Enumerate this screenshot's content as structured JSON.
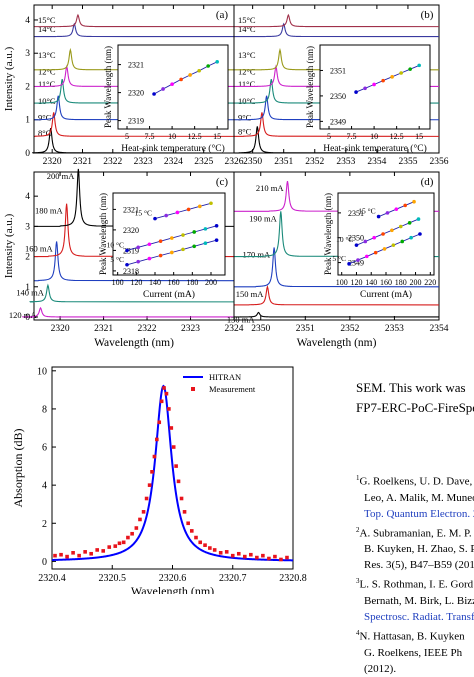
{
  "chart_data": [
    {
      "id": "a",
      "type": "line",
      "panel_label": "(a)",
      "xlabel": "",
      "ylabel": "Intensity (a.u.)",
      "xlim": [
        2319.4,
        2326
      ],
      "ylim": [
        0,
        4.45
      ],
      "xticks": [
        "2320",
        "2321",
        "2322",
        "2323",
        "2324",
        "2325",
        "2326"
      ],
      "xtick_values": [
        2320,
        2321,
        2322,
        2323,
        2324,
        2325,
        2326
      ],
      "yticks": [
        "0",
        "1",
        "2",
        "3",
        "4"
      ],
      "ytick_values": [
        0,
        1,
        2,
        3,
        4
      ],
      "series": [
        {
          "name": "8°C",
          "peak": 2319.95,
          "baseline": 0,
          "height": 0.75,
          "color": "#000000"
        },
        {
          "name": "9°C",
          "peak": 2320.05,
          "baseline": 0.5,
          "height": 0.72,
          "color": "#d61c1c"
        },
        {
          "name": "10°C",
          "peak": 2320.2,
          "baseline": 1.0,
          "height": 0.72,
          "color": "#1f3fbf"
        },
        {
          "name": "11°C",
          "peak": 2320.33,
          "baseline": 1.5,
          "height": 0.72,
          "color": "#1a8a7a"
        },
        {
          "name": "12°C",
          "peak": 2320.48,
          "baseline": 2.0,
          "height": 0.6,
          "color": "#cc22cc"
        },
        {
          "name": "13°C",
          "peak": 2320.6,
          "baseline": 2.5,
          "height": 0.6,
          "color": "#9a9a1a"
        },
        {
          "name": "14°C",
          "peak": 2320.73,
          "baseline": 3.5,
          "height": 0.38,
          "color": "#3a3aa0"
        },
        {
          "name": "15°C",
          "peak": 2320.85,
          "baseline": 3.8,
          "height": 0.35,
          "color": "#a0304a"
        }
      ],
      "inset": {
        "xlabel": "Heat-sink temperature (°C)",
        "ylabel": "Peak Wavelength (nm)",
        "xlim": [
          4,
          16.2
        ],
        "ylim": [
          2318.7,
          2321.7
        ],
        "xticks": [
          "5",
          "7.5",
          "10",
          "12.5",
          "15"
        ],
        "xtick_values": [
          5,
          7.5,
          10,
          12.5,
          15
        ],
        "yticks": [
          "2319",
          "2320",
          "2321"
        ],
        "ytick_values": [
          2319,
          2320,
          2321
        ],
        "x": [
          8,
          9,
          10,
          11,
          12,
          13,
          14,
          15
        ],
        "y": [
          2319.95,
          2320.13,
          2320.3,
          2320.47,
          2320.63,
          2320.78,
          2320.95,
          2321.1
        ]
      }
    },
    {
      "id": "b",
      "type": "line",
      "panel_label": "(b)",
      "xlabel": "",
      "ylabel": "",
      "xlim": [
        2349.4,
        2356
      ],
      "ylim": [
        0,
        4.45
      ],
      "xticks": [
        "2350",
        "2351",
        "2352",
        "2353",
        "2354",
        "2355",
        "2356"
      ],
      "xtick_values": [
        2350,
        2351,
        2352,
        2353,
        2354,
        2355,
        2356
      ],
      "yticks": [],
      "ytick_values": [],
      "series": [
        {
          "name": "8°C",
          "peak": 2350.15,
          "baseline": 0,
          "height": 0.8,
          "color": "#000000"
        },
        {
          "name": "9°C",
          "peak": 2350.3,
          "baseline": 0.5,
          "height": 0.72,
          "color": "#d61c1c"
        },
        {
          "name": "10°C",
          "peak": 2350.45,
          "baseline": 1.0,
          "height": 0.72,
          "color": "#1f3fbf"
        },
        {
          "name": "11°C",
          "peak": 2350.6,
          "baseline": 1.5,
          "height": 0.72,
          "color": "#1a8a7a"
        },
        {
          "name": "12°C",
          "peak": 2350.75,
          "baseline": 2.0,
          "height": 0.6,
          "color": "#cc22cc"
        },
        {
          "name": "13°C",
          "peak": 2350.88,
          "baseline": 2.5,
          "height": 0.6,
          "color": "#9a9a1a"
        },
        {
          "name": "14°C",
          "peak": 2351.0,
          "baseline": 3.5,
          "height": 0.38,
          "color": "#3a3aa0"
        },
        {
          "name": "15°C",
          "peak": 2351.15,
          "baseline": 3.8,
          "height": 0.35,
          "color": "#a0304a"
        }
      ],
      "inset": {
        "xlabel": "Heat-sink temperature (°C)",
        "ylabel": "Peak Wavelength (nm)",
        "xlim": [
          4,
          16.2
        ],
        "ylim": [
          2348.7,
          2352.0
        ],
        "xticks": [
          "5",
          "7.5",
          "10",
          "12.5",
          "15"
        ],
        "xtick_values": [
          5,
          7.5,
          10,
          12.5,
          15
        ],
        "yticks": [
          "2349",
          "2350",
          "2351"
        ],
        "ytick_values": [
          2349,
          2350,
          2351
        ],
        "x": [
          8,
          9,
          10,
          11,
          12,
          13,
          14,
          15
        ],
        "y": [
          2350.15,
          2350.3,
          2350.45,
          2350.6,
          2350.75,
          2350.9,
          2351.05,
          2351.2
        ]
      }
    },
    {
      "id": "c",
      "type": "line",
      "panel_label": "(c)",
      "xlabel": "Wavelength (nm)",
      "ylabel": "Intensity (a.u.)",
      "xlim": [
        2319.4,
        2324
      ],
      "ylim": [
        -0.1,
        4.8
      ],
      "xticks": [
        "2320",
        "2321",
        "2322",
        "2323",
        "2324"
      ],
      "xtick_values": [
        2320,
        2321,
        2322,
        2323,
        2324
      ],
      "yticks": [
        "0",
        "1",
        "2",
        "3",
        "4"
      ],
      "ytick_values": [
        0,
        1,
        2,
        3,
        4
      ],
      "series": [
        {
          "name": "120 mA",
          "peak": 2319.55,
          "baseline": 0,
          "height": 0.3,
          "color": "#cc22cc"
        },
        {
          "name": "140 mA",
          "peak": 2319.72,
          "baseline": 0.5,
          "height": 0.55,
          "color": "#1a8a7a"
        },
        {
          "name": "160 mA",
          "peak": 2319.92,
          "baseline": 1.2,
          "height": 1.3,
          "color": "#1f3fbf"
        },
        {
          "name": "180 mA",
          "peak": 2320.15,
          "baseline": 2.0,
          "height": 1.75,
          "color": "#d61c1c"
        },
        {
          "name": "200 mA",
          "peak": 2320.42,
          "baseline": 3.0,
          "height": 1.9,
          "color": "#000000"
        }
      ],
      "inset": {
        "xlabel": "Current (mA)",
        "ylabel": "Peak Wavelength (nm)",
        "xlim": [
          95,
          215
        ],
        "ylim": [
          2317.8,
          2321.8
        ],
        "xticks": [
          "100",
          "120",
          "140",
          "160",
          "180",
          "200"
        ],
        "xtick_values": [
          100,
          120,
          140,
          160,
          180,
          200
        ],
        "yticks": [
          "2318",
          "2319",
          "2320",
          "2321"
        ],
        "ytick_values": [
          2318,
          2319,
          2320,
          2321
        ],
        "series": [
          {
            "name": "5 °C",
            "x": [
              110,
              122,
              134,
              146,
              158,
              170,
              182,
              194,
              206
            ],
            "y": [
              2318.3,
              2318.45,
              2318.6,
              2318.75,
              2318.9,
              2319.05,
              2319.2,
              2319.35,
              2319.5
            ]
          },
          {
            "name": "10 °C",
            "x": [
              110,
              122,
              134,
              146,
              158,
              170,
              182,
              194,
              206
            ],
            "y": [
              2319.0,
              2319.15,
              2319.3,
              2319.45,
              2319.6,
              2319.75,
              2319.9,
              2320.05,
              2320.2
            ]
          },
          {
            "name": "15 °C",
            "x": [
              140,
              152,
              164,
              176,
              188,
              200
            ],
            "y": [
              2320.55,
              2320.7,
              2320.85,
              2321.0,
              2321.15,
              2321.3
            ]
          }
        ]
      }
    },
    {
      "id": "d",
      "type": "line",
      "panel_label": "(d)",
      "xlabel": "Wavelength (nm)",
      "ylabel": "",
      "xlim": [
        2349.4,
        2354
      ],
      "ylim": [
        -0.1,
        4.8
      ],
      "xticks": [
        "2350",
        "2351",
        "2352",
        "2353",
        "2354"
      ],
      "xtick_values": [
        2350,
        2351,
        2352,
        2353,
        2354
      ],
      "yticks": [],
      "ytick_values": [],
      "series": [
        {
          "name": "130 mA",
          "peak": 2349.95,
          "baseline": 0,
          "height": 0.15,
          "color": "#000000"
        },
        {
          "name": "150 mA",
          "peak": 2350.15,
          "baseline": 0.4,
          "height": 0.6,
          "color": "#d61c1c"
        },
        {
          "name": "170 mA",
          "peak": 2350.3,
          "baseline": 1.0,
          "height": 1.3,
          "color": "#1f3fbf"
        },
        {
          "name": "190 mA",
          "peak": 2350.45,
          "baseline": 2.0,
          "height": 1.5,
          "color": "#1a8a7a"
        },
        {
          "name": "210 mA",
          "peak": 2350.6,
          "baseline": 3.5,
          "height": 1.0,
          "color": "#cc22cc"
        }
      ],
      "inset": {
        "xlabel": "Current (mA)",
        "ylabel": "Peak Wavelength (nm)",
        "xlim": [
          95,
          225
        ],
        "ylim": [
          2348.5,
          2351.8
        ],
        "xticks": [
          "100",
          "120",
          "140",
          "160",
          "180",
          "200",
          "220"
        ],
        "xtick_values": [
          100,
          120,
          140,
          160,
          180,
          200,
          220
        ],
        "yticks": [
          "2349",
          "2350",
          "2351"
        ],
        "ytick_values": [
          2349,
          2350,
          2351
        ],
        "series": [
          {
            "name": "5 °C",
            "x": [
              110,
              122,
              134,
              146,
              158,
              170,
              182,
              194,
              206
            ],
            "y": [
              2348.95,
              2349.1,
              2349.25,
              2349.4,
              2349.55,
              2349.7,
              2349.85,
              2350.0,
              2350.15
            ]
          },
          {
            "name": "10 °C",
            "x": [
              120,
              132,
              144,
              156,
              168,
              180,
              192,
              204
            ],
            "y": [
              2349.7,
              2349.85,
              2350.0,
              2350.15,
              2350.3,
              2350.45,
              2350.6,
              2350.75
            ]
          },
          {
            "name": "15 °C",
            "x": [
              150,
              162,
              174,
              186,
              198
            ],
            "y": [
              2350.85,
              2351.0,
              2351.15,
              2351.3,
              2351.45
            ]
          }
        ]
      }
    },
    {
      "id": "e",
      "type": "scatter",
      "xlabel": "Wavelength (nm)",
      "ylabel": "Absorption (dB)",
      "xlim": [
        2320.4,
        2320.8
      ],
      "ylim": [
        -0.4,
        10.2
      ],
      "xticks": [
        "2320.4",
        "2320.5",
        "2320.6",
        "2320.7",
        "2320.8"
      ],
      "xtick_values": [
        2320.4,
        2320.5,
        2320.6,
        2320.7,
        2320.8
      ],
      "yticks": [
        "0",
        "2",
        "4",
        "6",
        "8",
        "10"
      ],
      "ytick_values": [
        0,
        2,
        4,
        6,
        8,
        10
      ],
      "legend": [
        {
          "name": "HITRAN",
          "color": "#0000ff",
          "marker": "line"
        },
        {
          "name": "Measurement",
          "color": "#e8141c",
          "marker": "square"
        }
      ],
      "line_peak": 2320.585,
      "line_height": 9.2,
      "line_hwhm": 0.0165,
      "measurement": {
        "x": [
          2320.405,
          2320.415,
          2320.425,
          2320.435,
          2320.445,
          2320.455,
          2320.465,
          2320.475,
          2320.485,
          2320.495,
          2320.505,
          2320.512,
          2320.519,
          2320.526,
          2320.533,
          2320.54,
          2320.546,
          2320.552,
          2320.557,
          2320.562,
          2320.566,
          2320.57,
          2320.574,
          2320.578,
          2320.582,
          2320.586,
          2320.59,
          2320.594,
          2320.598,
          2320.602,
          2320.606,
          2320.61,
          2320.615,
          2320.62,
          2320.626,
          2320.632,
          2320.639,
          2320.646,
          2320.654,
          2320.662,
          2320.67,
          2320.68,
          2320.69,
          2320.7,
          2320.71,
          2320.72,
          2320.73,
          2320.74,
          2320.75,
          2320.76,
          2320.77,
          2320.78,
          2320.79
        ],
        "y": [
          0.3,
          0.35,
          0.25,
          0.45,
          0.3,
          0.5,
          0.4,
          0.6,
          0.55,
          0.75,
          0.8,
          0.95,
          1.0,
          1.25,
          1.45,
          1.75,
          2.2,
          2.6,
          3.3,
          4.0,
          4.7,
          5.5,
          6.4,
          7.3,
          8.4,
          9.1,
          8.8,
          8.0,
          7.0,
          6.0,
          5.0,
          4.2,
          3.3,
          2.6,
          2.0,
          1.6,
          1.25,
          1.0,
          0.85,
          0.7,
          0.6,
          0.45,
          0.5,
          0.3,
          0.4,
          0.25,
          0.35,
          0.2,
          0.3,
          0.15,
          0.25,
          0.1,
          0.2
        ]
      }
    }
  ],
  "text_column": {
    "paragraph": [
      "SEM. This work was",
      "FP7-ERC-PoC-FireSpe"
    ],
    "references": [
      {
        "sup": "1",
        "text": "G. Roelkens, U. D. Dave,"
      },
      {
        "sup": "",
        "text": "Leo, A. Malik, M. Muneo"
      },
      {
        "sup": "",
        "text": "Top. Quantum Electron. 20",
        "link": true
      },
      {
        "sup": "2",
        "text": "A. Subramanian, E. M. P."
      },
      {
        "sup": "",
        "text": "B. Kuyken, H. Zhao, S. Pa"
      },
      {
        "sup": "",
        "text": "Res. 3(5), B47–B59 (2015"
      },
      {
        "sup": "3",
        "text": "L. S. Rothman, I. E. Gord"
      },
      {
        "sup": "",
        "text": "Bernath, M. Birk, L. Bizzo"
      },
      {
        "sup": "",
        "text": "Spectrosc. Radiat. Transfe",
        "link": true
      },
      {
        "sup": "4",
        "text": "N. Hattasan, B. Kuyken"
      },
      {
        "sup": "",
        "text": "G. Roelkens, IEEE Ph"
      },
      {
        "sup": "",
        "text": "(2012)."
      }
    ]
  },
  "colors": {
    "hitran_line": "#0000ff",
    "measurement": "#e8141c",
    "link": "#1f3fbf",
    "inset_marker": "#1a1a80"
  }
}
